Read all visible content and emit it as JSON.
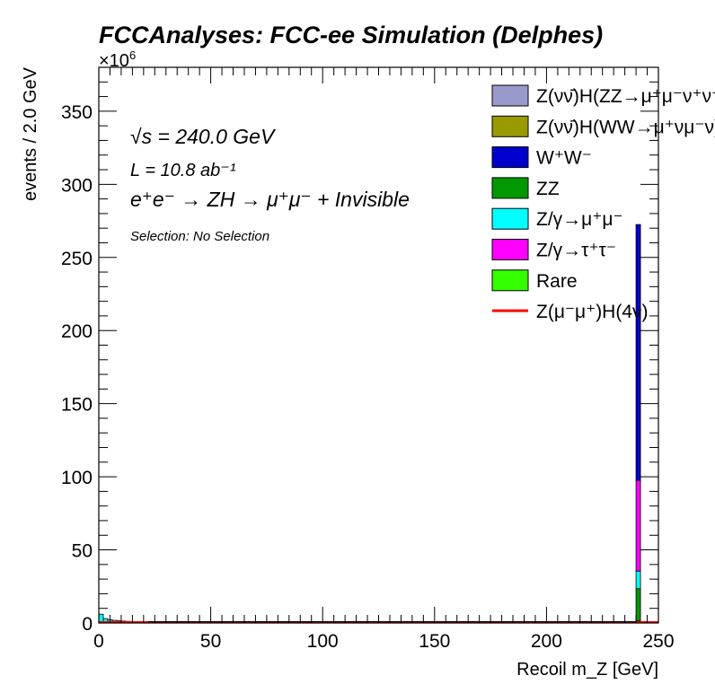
{
  "chart_data": {
    "type": "bar",
    "title": "FCCAnalyses: FCC-ee Simulation (Delphes)",
    "xlabel": "Recoil m_Z [GeV]",
    "ylabel": "events / 2.0 GeV",
    "y_multiplier": "×10^6",
    "xlim": [
      0,
      250
    ],
    "ylim": [
      0,
      380
    ],
    "x_ticks": [
      0,
      50,
      100,
      150,
      200,
      250
    ],
    "y_ticks": [
      0,
      50,
      100,
      150,
      200,
      250,
      300,
      350
    ],
    "grid": false,
    "legend_position": "top-right",
    "annotations": {
      "sqrt_s": "√s = 240.0 GeV",
      "lumi": "L = 10.8 ab⁻¹",
      "process": "e⁺e⁻ → ZH → μ⁺μ⁻ + Invisible",
      "selection": "Selection: No Selection"
    },
    "stack_series": [
      {
        "name": "Z(νν̄)H(ZZ→μ⁺μ⁻ν⁺ν⁻)",
        "color": "#9999cc",
        "values": [
          [
            241,
            0.0
          ]
        ]
      },
      {
        "name": "Z(νν̄)H(WW→μ⁺νμ⁻ν)",
        "color": "#999900",
        "values": [
          [
            241,
            0.0
          ]
        ]
      },
      {
        "name": "W⁺W⁻",
        "color": "#0000cc",
        "values": [
          [
            241,
            175
          ]
        ]
      },
      {
        "name": "ZZ",
        "color": "#009900",
        "values": [
          [
            241,
            22
          ]
        ]
      },
      {
        "name": "Z/γ→μ⁺μ⁻",
        "color": "#00ffff",
        "values": [
          [
            1,
            6.0
          ],
          [
            3,
            3.0
          ],
          [
            5,
            2.2
          ],
          [
            7,
            1.8
          ],
          [
            9,
            1.5
          ],
          [
            11,
            1.3
          ],
          [
            13,
            1.1
          ],
          [
            15,
            1.0
          ],
          [
            17,
            0.9
          ],
          [
            19,
            0.8
          ],
          [
            21,
            0.6
          ],
          [
            241,
            12
          ]
        ]
      },
      {
        "name": "Z/γ→τ⁺τ⁻",
        "color": "#ff00ff",
        "values": [
          [
            241,
            62
          ]
        ]
      },
      {
        "name": "Rare",
        "color": "#33ff00",
        "values": [
          [
            241,
            1.5
          ]
        ]
      }
    ],
    "stack_order_bottom_to_top": [
      "Rare",
      "ZZ",
      "Z/γ→μ⁺μ⁻",
      "Z/γ→τ⁺τ⁻",
      "W⁺W⁻",
      "Z(νν̄)H(WW→μ⁺νμ⁻ν)",
      "Z(νν̄)H(ZZ→μ⁺μ⁻ν⁺ν⁻)"
    ],
    "signal": {
      "name": "Z(μ⁻μ⁺)H(4ν)",
      "color": "#ff0000",
      "values": [
        [
          125,
          0.003
        ]
      ]
    },
    "bin_width": 2.0
  }
}
